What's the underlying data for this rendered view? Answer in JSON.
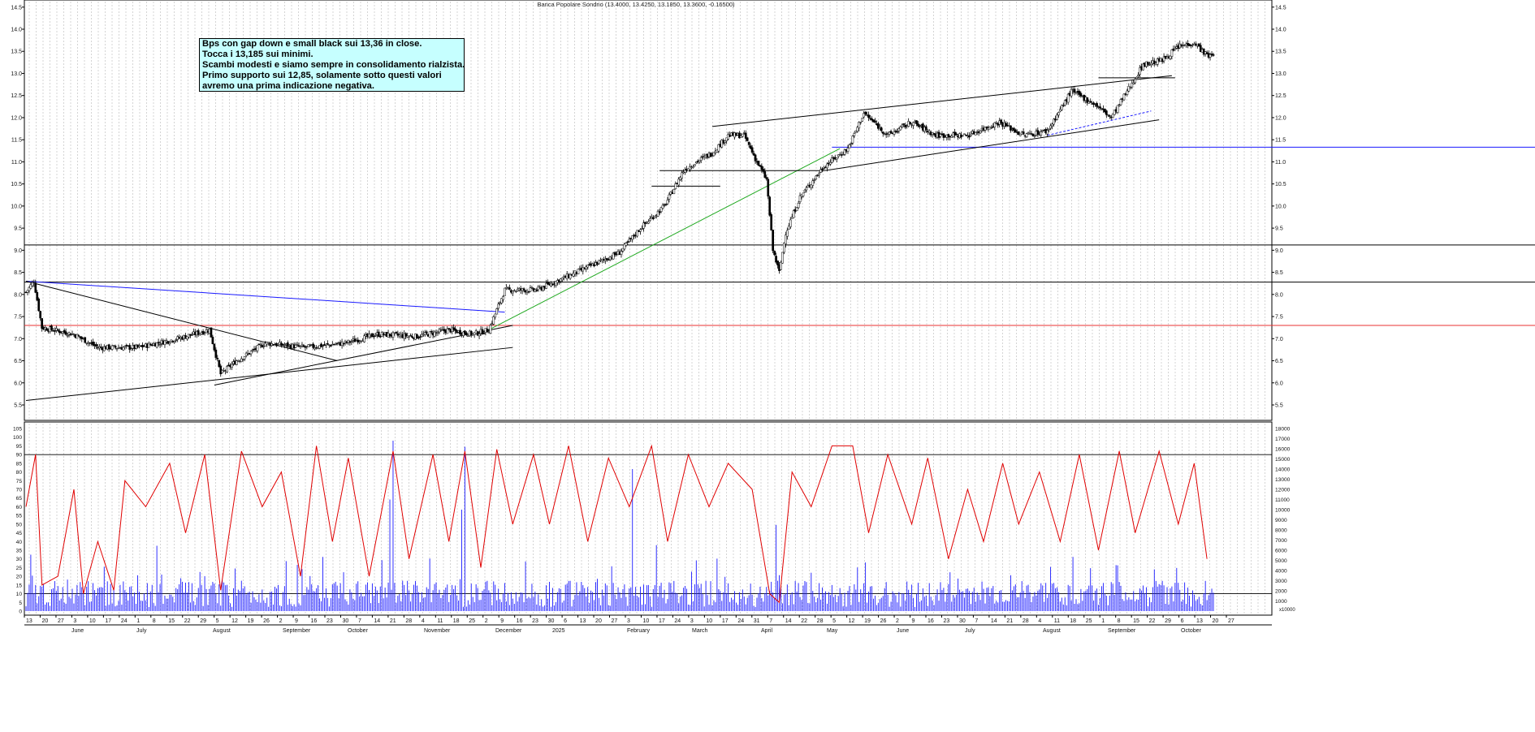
{
  "title": "Banca Popolare Sondrio (13.4000, 13.4250, 13.1850, 13.3600, -0.16500)",
  "annotation": {
    "lines": [
      "Bps con gap down e small black sui 13,36 in close.",
      "Tocca i 13,185 sui minimi.",
      "Scambi modesti e siamo sempre in consolidamento rialzista.",
      "Primo supporto sui 12,85, solamente sotto questi valori",
      "avremo una prima indicazione negativa."
    ]
  },
  "chart_data": [
    {
      "type": "candlestick",
      "title": "Banca Popolare Sondrio (13.4000, 13.4250, 13.1850, 13.3600, -0.16500)",
      "ylim": [
        5.0,
        14.5
      ],
      "yticks": [
        5.5,
        6.0,
        6.5,
        7.0,
        7.5,
        8.0,
        8.5,
        9.0,
        9.5,
        10.0,
        10.5,
        11.0,
        11.5,
        12.0,
        12.5,
        13.0,
        13.5,
        14.0,
        14.5
      ],
      "last_bar": {
        "open": 13.4,
        "high": 13.425,
        "low": 13.185,
        "close": 13.36,
        "change": -0.165
      },
      "close_path": [
        {
          "t": 0,
          "v": 8.05
        },
        {
          "t": 5,
          "v": 8.3
        },
        {
          "t": 10,
          "v": 7.25
        },
        {
          "t": 30,
          "v": 7.1
        },
        {
          "t": 45,
          "v": 6.8
        },
        {
          "t": 70,
          "v": 6.8
        },
        {
          "t": 95,
          "v": 7.0
        },
        {
          "t": 115,
          "v": 7.2
        },
        {
          "t": 122,
          "v": 6.2
        },
        {
          "t": 132,
          "v": 6.5
        },
        {
          "t": 150,
          "v": 6.9
        },
        {
          "t": 175,
          "v": 6.8
        },
        {
          "t": 200,
          "v": 6.9
        },
        {
          "t": 220,
          "v": 7.1
        },
        {
          "t": 245,
          "v": 7.05
        },
        {
          "t": 265,
          "v": 7.2
        },
        {
          "t": 280,
          "v": 7.1
        },
        {
          "t": 290,
          "v": 7.2
        },
        {
          "t": 300,
          "v": 8.1
        },
        {
          "t": 320,
          "v": 8.1
        },
        {
          "t": 345,
          "v": 8.5
        },
        {
          "t": 372,
          "v": 8.95
        },
        {
          "t": 385,
          "v": 9.5
        },
        {
          "t": 400,
          "v": 10.0
        },
        {
          "t": 412,
          "v": 10.8
        },
        {
          "t": 420,
          "v": 11.0
        },
        {
          "t": 430,
          "v": 11.2
        },
        {
          "t": 440,
          "v": 11.6
        },
        {
          "t": 450,
          "v": 11.6
        },
        {
          "t": 458,
          "v": 11.0
        },
        {
          "t": 464,
          "v": 10.6
        },
        {
          "t": 468,
          "v": 9.0
        },
        {
          "t": 472,
          "v": 8.5
        },
        {
          "t": 476,
          "v": 9.4
        },
        {
          "t": 485,
          "v": 10.2
        },
        {
          "t": 500,
          "v": 10.9
        },
        {
          "t": 515,
          "v": 11.3
        },
        {
          "t": 525,
          "v": 12.1
        },
        {
          "t": 540,
          "v": 11.6
        },
        {
          "t": 555,
          "v": 11.9
        },
        {
          "t": 570,
          "v": 11.6
        },
        {
          "t": 590,
          "v": 11.6
        },
        {
          "t": 610,
          "v": 11.9
        },
        {
          "t": 625,
          "v": 11.6
        },
        {
          "t": 640,
          "v": 11.7
        },
        {
          "t": 655,
          "v": 12.6
        },
        {
          "t": 670,
          "v": 12.3
        },
        {
          "t": 680,
          "v": 12.0
        },
        {
          "t": 690,
          "v": 12.6
        },
        {
          "t": 700,
          "v": 13.2
        },
        {
          "t": 712,
          "v": 13.3
        },
        {
          "t": 722,
          "v": 13.6
        },
        {
          "t": 732,
          "v": 13.7
        },
        {
          "t": 740,
          "v": 13.4
        }
      ],
      "horizontal_lines": [
        {
          "value": 7.3,
          "color": "#e83030"
        },
        {
          "value": 8.28,
          "color": "#000000"
        },
        {
          "value": 9.12,
          "color": "#000000"
        },
        {
          "value": 11.33,
          "color": "#1a1aff"
        }
      ]
    },
    {
      "type": "line+bar",
      "series": [
        {
          "name": "oscillator",
          "color": "#e00000",
          "ylim": [
            0,
            105
          ]
        },
        {
          "name": "volume",
          "color": "#1a1aff",
          "ylim": [
            0,
            18000
          ]
        }
      ],
      "left_ticks": [
        0,
        5,
        10,
        15,
        20,
        25,
        30,
        35,
        40,
        45,
        50,
        55,
        60,
        65,
        70,
        75,
        80,
        85,
        90,
        95,
        100,
        105
      ],
      "right_ticks": [
        1000,
        2000,
        3000,
        4000,
        5000,
        6000,
        7000,
        8000,
        9000,
        10000,
        11000,
        12000,
        13000,
        14000,
        15000,
        16000,
        17000,
        18000
      ],
      "right_unit": "x10000",
      "levels": [
        10,
        90
      ],
      "osc_turns": [
        {
          "t": 0,
          "v": 60
        },
        {
          "t": 6,
          "v": 90
        },
        {
          "t": 10,
          "v": 15
        },
        {
          "t": 20,
          "v": 20
        },
        {
          "t": 30,
          "v": 70
        },
        {
          "t": 36,
          "v": 10
        },
        {
          "t": 45,
          "v": 40
        },
        {
          "t": 55,
          "v": 12
        },
        {
          "t": 62,
          "v": 75
        },
        {
          "t": 75,
          "v": 60
        },
        {
          "t": 90,
          "v": 85
        },
        {
          "t": 100,
          "v": 45
        },
        {
          "t": 112,
          "v": 90
        },
        {
          "t": 122,
          "v": 12
        },
        {
          "t": 135,
          "v": 92
        },
        {
          "t": 148,
          "v": 60
        },
        {
          "t": 160,
          "v": 80
        },
        {
          "t": 172,
          "v": 20
        },
        {
          "t": 182,
          "v": 95
        },
        {
          "t": 192,
          "v": 40
        },
        {
          "t": 202,
          "v": 88
        },
        {
          "t": 215,
          "v": 20
        },
        {
          "t": 230,
          "v": 92
        },
        {
          "t": 240,
          "v": 30
        },
        {
          "t": 255,
          "v": 90
        },
        {
          "t": 265,
          "v": 40
        },
        {
          "t": 275,
          "v": 92
        },
        {
          "t": 285,
          "v": 25
        },
        {
          "t": 295,
          "v": 93
        },
        {
          "t": 305,
          "v": 50
        },
        {
          "t": 318,
          "v": 90
        },
        {
          "t": 328,
          "v": 50
        },
        {
          "t": 340,
          "v": 95
        },
        {
          "t": 352,
          "v": 40
        },
        {
          "t": 365,
          "v": 88
        },
        {
          "t": 378,
          "v": 60
        },
        {
          "t": 392,
          "v": 95
        },
        {
          "t": 402,
          "v": 40
        },
        {
          "t": 415,
          "v": 90
        },
        {
          "t": 428,
          "v": 60
        },
        {
          "t": 440,
          "v": 85
        },
        {
          "t": 455,
          "v": 70
        },
        {
          "t": 466,
          "v": 10
        },
        {
          "t": 472,
          "v": 5
        },
        {
          "t": 480,
          "v": 80
        },
        {
          "t": 492,
          "v": 60
        },
        {
          "t": 505,
          "v": 95
        },
        {
          "t": 518,
          "v": 95
        },
        {
          "t": 528,
          "v": 45
        },
        {
          "t": 540,
          "v": 90
        },
        {
          "t": 555,
          "v": 50
        },
        {
          "t": 565,
          "v": 88
        },
        {
          "t": 578,
          "v": 30
        },
        {
          "t": 590,
          "v": 70
        },
        {
          "t": 600,
          "v": 40
        },
        {
          "t": 612,
          "v": 85
        },
        {
          "t": 622,
          "v": 50
        },
        {
          "t": 635,
          "v": 80
        },
        {
          "t": 648,
          "v": 40
        },
        {
          "t": 660,
          "v": 90
        },
        {
          "t": 672,
          "v": 35
        },
        {
          "t": 685,
          "v": 92
        },
        {
          "t": 695,
          "v": 45
        },
        {
          "t": 710,
          "v": 92
        },
        {
          "t": 722,
          "v": 50
        },
        {
          "t": 732,
          "v": 85
        },
        {
          "t": 740,
          "v": 30
        }
      ],
      "volume_spikes": [
        {
          "t": 230,
          "v": 16800
        },
        {
          "t": 228,
          "v": 11000
        },
        {
          "t": 275,
          "v": 16200
        },
        {
          "t": 273,
          "v": 10000
        },
        {
          "t": 470,
          "v": 8500
        },
        {
          "t": 380,
          "v": 14000
        },
        {
          "t": 395,
          "v": 6500
        },
        {
          "t": 420,
          "v": 5000
        }
      ]
    }
  ],
  "x_axis": {
    "day_labels": [
      "13",
      "20",
      "27",
      "3",
      "10",
      "17",
      "24",
      "1",
      "8",
      "15",
      "22",
      "29",
      "5",
      "12",
      "19",
      "26",
      "2",
      "9",
      "16",
      "23",
      "30",
      "7",
      "14",
      "21",
      "28",
      "4",
      "11",
      "18",
      "25",
      "2",
      "9",
      "16",
      "23",
      "30",
      "6",
      "13",
      "20",
      "27",
      "3",
      "10",
      "17",
      "24",
      "3",
      "10",
      "17",
      "24",
      "31",
      "7",
      "14",
      "22",
      "28",
      "5",
      "12",
      "19",
      "26",
      "2",
      "9",
      "16",
      "23",
      "30",
      "7",
      "14",
      "21",
      "28",
      "4",
      "11",
      "18",
      "25",
      "1",
      "8",
      "15",
      "22",
      "29",
      "6",
      "13",
      "20",
      "27"
    ],
    "month_labels": [
      "June",
      "July",
      "August",
      "September",
      "October",
      "November",
      "December",
      "2025",
      "February",
      "March",
      "April",
      "May",
      "June",
      "July",
      "August",
      "September",
      "October"
    ]
  }
}
